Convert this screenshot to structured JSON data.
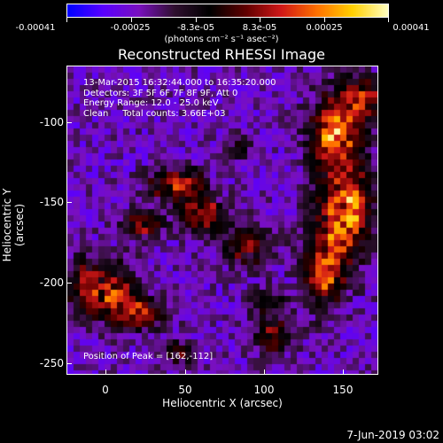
{
  "colorbar": {
    "tick_labels": [
      "-0.00041",
      "-0.00025",
      "-8.3e-05",
      "8.3e-05",
      "0.00025",
      "0.00041"
    ],
    "units": "(photons cm⁻² s⁻¹ asec⁻²)",
    "colors": [
      "#0000ff",
      "#5a00ff",
      "#7a10c0",
      "#301030",
      "#000000",
      "#600000",
      "#d01818",
      "#ff7000",
      "#ffd000",
      "#ffffc0"
    ]
  },
  "title": "Reconstructed RHESSI Image",
  "annotations": {
    "line1": "13-Mar-2015 16:32:44.000 to 16:35:20.000",
    "line2": "Detectors: 3F 5F 6F 7F 8F 9F, Att 0",
    "line3": "Energy Range: 12.0 - 25.0 keV",
    "line4": "Clean     Total counts: 3.66E+03",
    "peak": "Position of Peak = [162,-112]"
  },
  "axes": {
    "xlabel": "Heliocentric X (arcsec)",
    "ylabel": "Heliocentric Y (arcsec)",
    "xticks": [
      "0",
      "50",
      "100",
      "150"
    ],
    "yticks": [
      "-100",
      "-150",
      "-200",
      "-250"
    ]
  },
  "footer_date": "7-Jun-2019 03:02"
}
